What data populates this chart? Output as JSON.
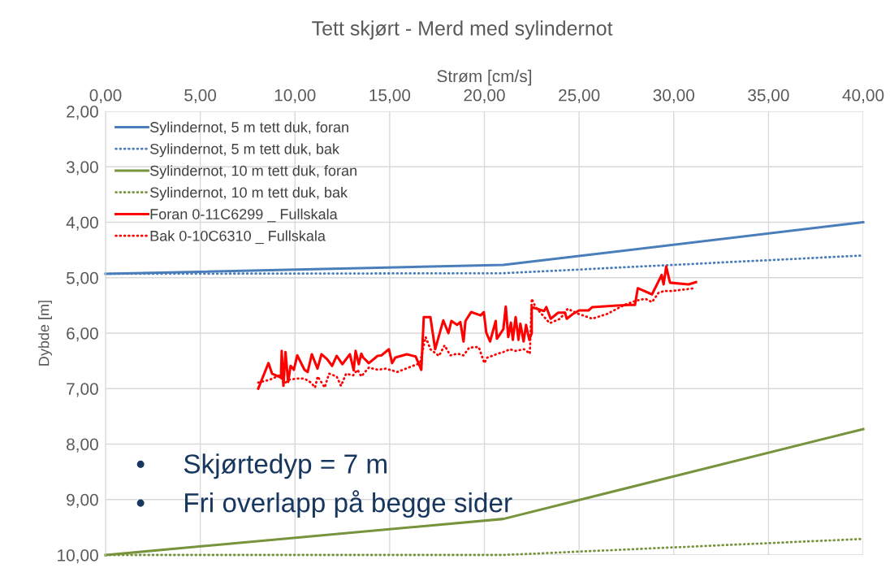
{
  "chart_data": {
    "type": "line",
    "title": "Tett skjørt - Merd med sylindernot",
    "xlabel": "Strøm [cm/s]",
    "ylabel": "Dybde [m]",
    "xlim": [
      0,
      40
    ],
    "ylim": [
      10,
      2
    ],
    "xticks": [
      {
        "value": 0,
        "label": "0,00"
      },
      {
        "value": 5,
        "label": "5,00"
      },
      {
        "value": 10,
        "label": "10,00"
      },
      {
        "value": 15,
        "label": "15,00"
      },
      {
        "value": 20,
        "label": "20,00"
      },
      {
        "value": 25,
        "label": "25,00"
      },
      {
        "value": 30,
        "label": "30,00"
      },
      {
        "value": 35,
        "label": "35,00"
      },
      {
        "value": 40,
        "label": "40,00"
      }
    ],
    "yticks": [
      {
        "value": 2,
        "label": "2,00"
      },
      {
        "value": 3,
        "label": "3,00"
      },
      {
        "value": 4,
        "label": "4,00"
      },
      {
        "value": 5,
        "label": "5,00"
      },
      {
        "value": 6,
        "label": "6,00"
      },
      {
        "value": 7,
        "label": "7,00"
      },
      {
        "value": 8,
        "label": "8,00"
      },
      {
        "value": 9,
        "label": "9,00"
      },
      {
        "value": 10,
        "label": "10,00"
      }
    ],
    "grid": true,
    "legend": "top left",
    "marker": "none",
    "annotations": [
      "•     Skjørtedyp = 7 m",
      "•     Fri overlapp på begge sider"
    ],
    "series": [
      {
        "name": "Sylindernot, 5 m tett duk, foran",
        "color": "#4a7ebb",
        "line_style": "solid",
        "x": [
          0,
          21,
          40
        ],
        "values": [
          4.93,
          4.77,
          4.0
        ]
      },
      {
        "name": "Sylindernot, 5 m tett duk, bak",
        "color": "#4a7ebb",
        "line_style": "dotted",
        "x": [
          0,
          21,
          40
        ],
        "values": [
          4.93,
          4.92,
          4.6
        ]
      },
      {
        "name": "Sylindernot, 10 m tett duk, foran",
        "color": "#77933c",
        "line_style": "solid",
        "x": [
          0,
          21,
          40
        ],
        "values": [
          10.0,
          9.35,
          7.73
        ]
      },
      {
        "name": "Sylindernot, 10 m tett duk, bak",
        "color": "#77933c",
        "line_style": "dotted",
        "x": [
          0,
          21,
          40
        ],
        "values": [
          10.0,
          10.0,
          9.71
        ]
      },
      {
        "name": "Foran 0-11C6299 _ Fullskala",
        "color": "#ff0000",
        "line_style": "solid",
        "x": [
          8.06,
          8.6,
          8.79,
          9.26,
          9.3,
          9.39,
          9.5,
          9.64,
          9.77,
          9.94,
          10.12,
          10.5,
          10.67,
          10.89,
          11.19,
          11.4,
          11.7,
          11.96,
          12.2,
          12.5,
          12.9,
          13.1,
          13.2,
          13.37,
          13.5,
          13.6,
          13.9,
          14.36,
          14.57,
          14.96,
          15.13,
          15.3,
          15.9,
          16.37,
          16.67,
          16.8,
          17.15,
          17.4,
          17.83,
          18.1,
          18.26,
          18.56,
          18.73,
          18.9,
          19.0,
          19.3,
          19.8,
          19.97,
          20.1,
          20.3,
          20.6,
          20.66,
          20.8,
          21.0,
          21.13,
          21.26,
          21.4,
          21.5,
          21.65,
          21.8,
          21.9,
          22.07,
          22.2,
          22.37,
          22.5,
          22.5,
          23.15,
          23.27,
          23.5,
          23.9,
          24.26,
          24.35,
          24.65,
          25.0,
          25.5,
          25.7,
          27.6,
          27.95,
          28.1,
          28.85,
          29.36,
          29.46,
          29.6,
          29.8,
          30.78,
          31.17
        ],
        "values": [
          7.0,
          6.54,
          6.73,
          6.8,
          6.32,
          6.95,
          6.34,
          6.88,
          6.59,
          6.66,
          6.4,
          6.66,
          6.7,
          6.38,
          6.64,
          6.38,
          6.47,
          6.59,
          6.41,
          6.56,
          6.38,
          6.67,
          6.32,
          6.56,
          6.37,
          6.44,
          6.54,
          6.41,
          6.4,
          6.29,
          6.54,
          6.44,
          6.38,
          6.42,
          6.66,
          5.71,
          5.71,
          6.29,
          5.77,
          6.0,
          5.78,
          5.85,
          5.8,
          6.15,
          5.78,
          5.62,
          5.68,
          5.62,
          5.99,
          6.15,
          5.78,
          6.1,
          6.03,
          5.93,
          5.52,
          6.07,
          5.81,
          6.12,
          5.71,
          6.12,
          5.83,
          6.15,
          5.85,
          6.12,
          6.0,
          5.53,
          5.6,
          5.53,
          5.74,
          5.63,
          5.63,
          5.74,
          5.66,
          5.59,
          5.59,
          5.53,
          5.49,
          5.49,
          5.19,
          5.3,
          4.95,
          5.12,
          4.8,
          5.09,
          5.12,
          5.08
        ]
      },
      {
        "name": "Bak 0-10C6310 _ Fullskala",
        "color": "#ff0000",
        "line_style": "dotted",
        "x": [
          8.06,
          8.66,
          9.2,
          9.43,
          9.69,
          10.1,
          10.5,
          10.84,
          11.06,
          11.2,
          11.57,
          11.8,
          12.2,
          12.43,
          12.7,
          13.07,
          13.3,
          13.5,
          13.9,
          14.36,
          14.8,
          15.4,
          16.0,
          16.6,
          16.9,
          17.15,
          17.6,
          17.9,
          18.2,
          18.6,
          18.9,
          19.2,
          19.7,
          20.0,
          20.15,
          20.4,
          20.7,
          21.0,
          21.35,
          21.65,
          22.1,
          22.4,
          22.5,
          22.7,
          23.45,
          24.0,
          24.4,
          24.95,
          25.7,
          26.5,
          27.4,
          28.05,
          28.5,
          28.85,
          29.2,
          29.5,
          29.9,
          31.1
        ],
        "values": [
          6.89,
          6.84,
          6.76,
          6.91,
          6.84,
          6.82,
          6.82,
          6.89,
          6.98,
          6.78,
          6.98,
          6.73,
          6.78,
          6.95,
          6.73,
          6.76,
          6.66,
          6.78,
          6.62,
          6.66,
          6.64,
          6.7,
          6.62,
          6.54,
          6.07,
          6.29,
          6.41,
          6.22,
          6.4,
          6.37,
          6.4,
          6.26,
          6.25,
          6.54,
          6.44,
          6.41,
          6.37,
          6.34,
          6.29,
          6.32,
          6.29,
          6.37,
          5.38,
          5.53,
          5.82,
          5.74,
          5.56,
          5.65,
          5.74,
          5.65,
          5.49,
          5.41,
          5.38,
          5.44,
          5.27,
          5.24,
          5.24,
          5.19
        ]
      }
    ]
  }
}
